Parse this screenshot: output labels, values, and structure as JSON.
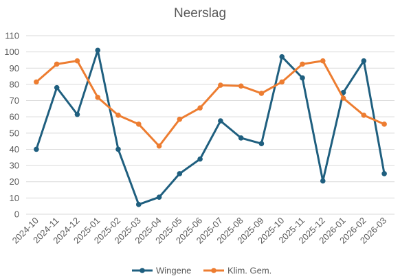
{
  "chart_data": {
    "type": "line",
    "title": "Neerslag",
    "xlabel": "",
    "ylabel": "",
    "ylim": [
      0,
      110
    ],
    "yticks": [
      0,
      10,
      20,
      30,
      40,
      50,
      60,
      70,
      80,
      90,
      100,
      110
    ],
    "grid": true,
    "legend_position": "bottom",
    "categories": [
      "2024-10",
      "2024-11",
      "2024-12",
      "2025-01",
      "2025-02",
      "2025-03",
      "2025-04",
      "2025-05",
      "2025-06",
      "2025-07",
      "2025-08",
      "2025-09",
      "2025-10",
      "2025-11",
      "2025-12",
      "2026-01",
      "2026-02",
      "2026-03"
    ],
    "series": [
      {
        "name": "Wingene",
        "color": "#1f5f7f",
        "values": [
          40,
          78,
          61.5,
          101,
          40,
          6,
          10.5,
          25,
          34,
          57.5,
          47,
          43.5,
          97,
          84,
          20.5,
          75,
          94.5,
          25
        ]
      },
      {
        "name": "Klim. Gem.",
        "color": "#ed7d31",
        "values": [
          81.5,
          92.5,
          94.5,
          72,
          61,
          55.5,
          42,
          58.5,
          65.5,
          79.5,
          79,
          74.5,
          81.5,
          92.5,
          94.5,
          71.5,
          61,
          55.5
        ]
      }
    ]
  }
}
